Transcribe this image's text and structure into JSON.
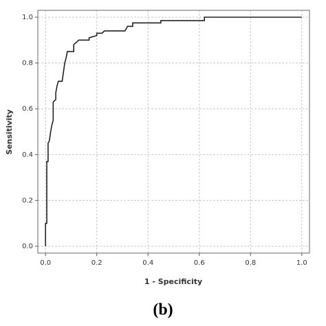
{
  "chart_data": {
    "type": "line",
    "x_label": "1 - Specificity",
    "y_label": "Sensitivity",
    "caption": "(b)",
    "x": [
      0,
      0,
      0.005,
      0.005,
      0.01,
      0.01,
      0.015,
      0.02,
      0.025,
      0.03,
      0.03,
      0.04,
      0.04,
      0.045,
      0.05,
      0.065,
      0.07,
      0.075,
      0.08,
      0.085,
      0.11,
      0.11,
      0.12,
      0.13,
      0.17,
      0.17,
      0.2,
      0.2,
      0.22,
      0.23,
      0.31,
      0.32,
      0.34,
      0.34,
      0.45,
      0.45,
      0.62,
      0.62,
      1.0
    ],
    "series": [
      {
        "color": "#222222",
        "values": [
          0,
          0.1,
          0.1,
          0.37,
          0.37,
          0.45,
          0.46,
          0.5,
          0.53,
          0.55,
          0.63,
          0.64,
          0.67,
          0.7,
          0.72,
          0.72,
          0.76,
          0.8,
          0.82,
          0.85,
          0.85,
          0.88,
          0.89,
          0.9,
          0.9,
          0.91,
          0.92,
          0.93,
          0.93,
          0.94,
          0.94,
          0.96,
          0.96,
          0.975,
          0.975,
          0.985,
          0.985,
          1.0,
          1.0
        ]
      }
    ],
    "xlim": [
      -0.03,
      1.03
    ],
    "ylim": [
      -0.03,
      1.03
    ],
    "xticks": [
      {
        "value": 0,
        "label": "0.0"
      },
      0.2,
      0.4,
      0.6,
      0.8,
      {
        "value": 1,
        "label": "1.0"
      }
    ],
    "yticks": [
      {
        "value": 0,
        "label": "0.0"
      },
      0.2,
      0.4,
      0.6,
      0.8,
      {
        "value": 1,
        "label": "1.0"
      }
    ],
    "grid": true
  }
}
